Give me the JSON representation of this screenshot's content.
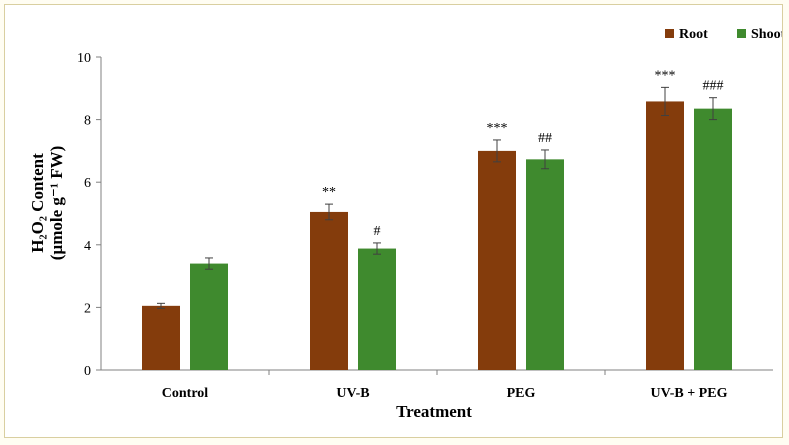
{
  "chart_data": {
    "type": "bar",
    "categories": [
      "Control",
      "UV-B",
      "PEG",
      "UV-B + PEG"
    ],
    "series": [
      {
        "name": "Root",
        "color": "#843C0C",
        "values": [
          2.05,
          5.05,
          7.0,
          8.58
        ],
        "errors": [
          0.08,
          0.25,
          0.35,
          0.45
        ],
        "labels": [
          "",
          "**",
          "***",
          "***"
        ]
      },
      {
        "name": "Shoot",
        "color": "#3F8A2E",
        "values": [
          3.4,
          3.88,
          6.73,
          8.35
        ],
        "errors": [
          0.18,
          0.18,
          0.3,
          0.35
        ],
        "labels": [
          "",
          "#",
          "##",
          "###"
        ]
      }
    ],
    "xlabel": "Treatment",
    "ylabel_line1": "H₂O₂ Content",
    "ylabel_line2": "(µmole g⁻¹ FW)",
    "ylim": [
      0,
      10
    ],
    "yticks": [
      0,
      2,
      4,
      6,
      8,
      10
    ],
    "grid": false,
    "legend_position": "top-right"
  }
}
